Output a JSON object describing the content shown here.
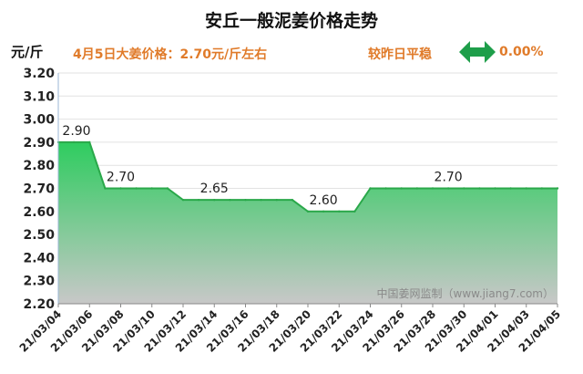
{
  "header": {
    "title": "安丘一般泥姜价格走势",
    "unit": "元/斤",
    "price_text": "4月5日大姜价格：2.70元/斤左右",
    "trend_text": "较昨日平稳",
    "change_text": "0.00%",
    "arrow_icon": "left-right-arrow-icon"
  },
  "colors": {
    "accent": "#e07b2a",
    "line": "#2aa84a",
    "fill_top": "#2ecc5f",
    "fill_bottom": "#c8c8c8",
    "arrow": "#1e9e4a"
  },
  "watermark": "中国姜网监制（www.jiang7.com）",
  "chart_data": {
    "type": "area",
    "title": "安丘一般泥姜价格走势",
    "ylabel": "元/斤",
    "ylim": [
      2.2,
      3.2
    ],
    "yticks": [
      "3.20",
      "3.10",
      "3.00",
      "2.90",
      "2.80",
      "2.70",
      "2.60",
      "2.50",
      "2.40",
      "2.30",
      "2.20"
    ],
    "x": [
      "21/03/04",
      "21/03/05",
      "21/03/06",
      "21/03/07",
      "21/03/08",
      "21/03/09",
      "21/03/10",
      "21/03/11",
      "21/03/12",
      "21/03/13",
      "21/03/14",
      "21/03/15",
      "21/03/16",
      "21/03/17",
      "21/03/18",
      "21/03/19",
      "21/03/20",
      "21/03/21",
      "21/03/22",
      "21/03/23",
      "21/03/24",
      "21/03/25",
      "21/03/26",
      "21/03/27",
      "21/03/28",
      "21/03/29",
      "21/03/30",
      "21/03/31",
      "21/04/01",
      "21/04/02",
      "21/04/03",
      "21/04/04",
      "21/04/05"
    ],
    "xtick_labels": [
      "21/03/04",
      "21/03/06",
      "21/03/08",
      "21/03/10",
      "21/03/12",
      "21/03/14",
      "21/03/16",
      "21/03/18",
      "21/03/20",
      "21/03/22",
      "21/03/24",
      "21/03/26",
      "21/03/28",
      "21/03/30",
      "21/04/01",
      "21/04/03",
      "21/04/05"
    ],
    "values": [
      2.9,
      2.9,
      2.9,
      2.7,
      2.7,
      2.7,
      2.7,
      2.7,
      2.65,
      2.65,
      2.65,
      2.65,
      2.65,
      2.65,
      2.65,
      2.65,
      2.6,
      2.6,
      2.6,
      2.6,
      2.7,
      2.7,
      2.7,
      2.7,
      2.7,
      2.7,
      2.7,
      2.7,
      2.7,
      2.7,
      2.7,
      2.7,
      2.7
    ],
    "data_labels": [
      {
        "index": 0,
        "text": "2.90"
      },
      {
        "index": 4,
        "text": "2.70"
      },
      {
        "index": 10,
        "text": "2.65"
      },
      {
        "index": 17,
        "text": "2.60"
      },
      {
        "index": 25,
        "text": "2.70"
      }
    ],
    "grid": true
  }
}
